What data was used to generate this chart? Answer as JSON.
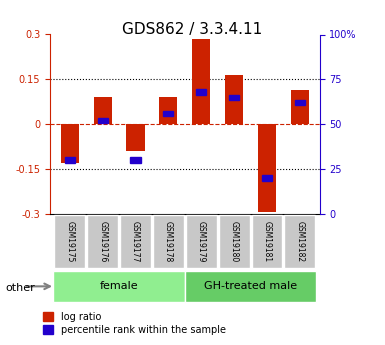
{
  "title": "GDS862 / 3.3.4.11",
  "samples": [
    "GSM19175",
    "GSM19176",
    "GSM19177",
    "GSM19178",
    "GSM19179",
    "GSM19180",
    "GSM19181",
    "GSM19182"
  ],
  "log_ratio": [
    -0.13,
    0.09,
    -0.09,
    0.09,
    0.285,
    0.165,
    -0.295,
    0.115
  ],
  "percentile_rank": [
    0.3,
    0.52,
    0.3,
    0.56,
    0.68,
    0.65,
    0.2,
    0.62
  ],
  "groups": [
    {
      "label": "female",
      "start": 0,
      "end": 4,
      "color": "#90EE90"
    },
    {
      "label": "GH-treated male",
      "start": 4,
      "end": 8,
      "color": "#66CC66"
    }
  ],
  "ylim": [
    -0.3,
    0.3
  ],
  "yticks_left": [
    -0.3,
    -0.15,
    0.0,
    0.15,
    0.3
  ],
  "ytick_left_labels": [
    "-0.3",
    "-0.15",
    "0",
    "0.15",
    "0.3"
  ],
  "yticks_right": [
    0,
    25,
    50,
    75,
    100
  ],
  "ytick_right_labels": [
    "0",
    "25",
    "50",
    "75",
    "100%"
  ],
  "bar_width": 0.55,
  "red_color": "#CC2200",
  "blue_color": "#2200CC",
  "sample_box_color": "#C8C8C8",
  "legend_red_label": "log ratio",
  "legend_blue_label": "percentile rank within the sample",
  "other_label": "other",
  "title_fontsize": 11,
  "tick_fontsize": 7,
  "group_label_fontsize": 8,
  "legend_fontsize": 7,
  "sample_fontsize": 5.5
}
